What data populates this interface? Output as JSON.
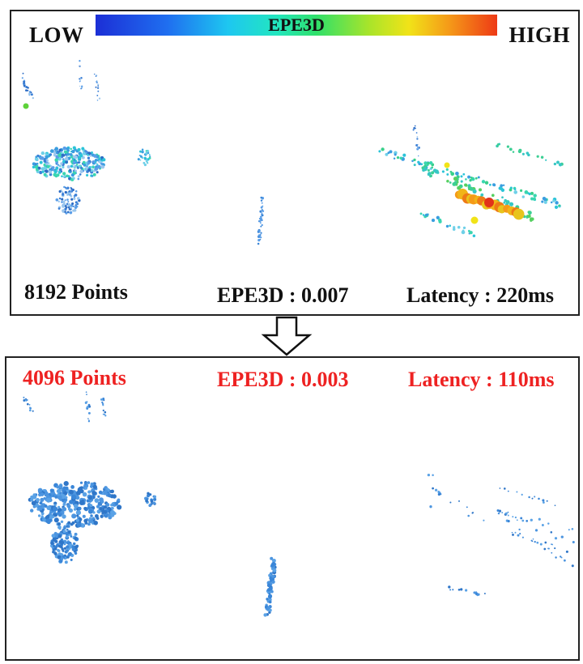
{
  "scale": {
    "low_label": "LOW",
    "high_label": "HIGH",
    "title": "EPE3D"
  },
  "top_panel": {
    "points_label": "8192 Points",
    "epe_label": "EPE3D : 0.007",
    "latency_label": "Latency : 220ms"
  },
  "bottom_panel": {
    "points_label": "4096 Points",
    "epe_label": "EPE3D : 0.003",
    "latency_label": "Latency : 110ms"
  },
  "colors": {
    "highlight_text": "#ee2222",
    "point_blue": "#3a86d8",
    "colormap": [
      "#1c2fd6",
      "#1ec7f0",
      "#2fe06a",
      "#f1e318",
      "#ee3a16"
    ]
  }
}
